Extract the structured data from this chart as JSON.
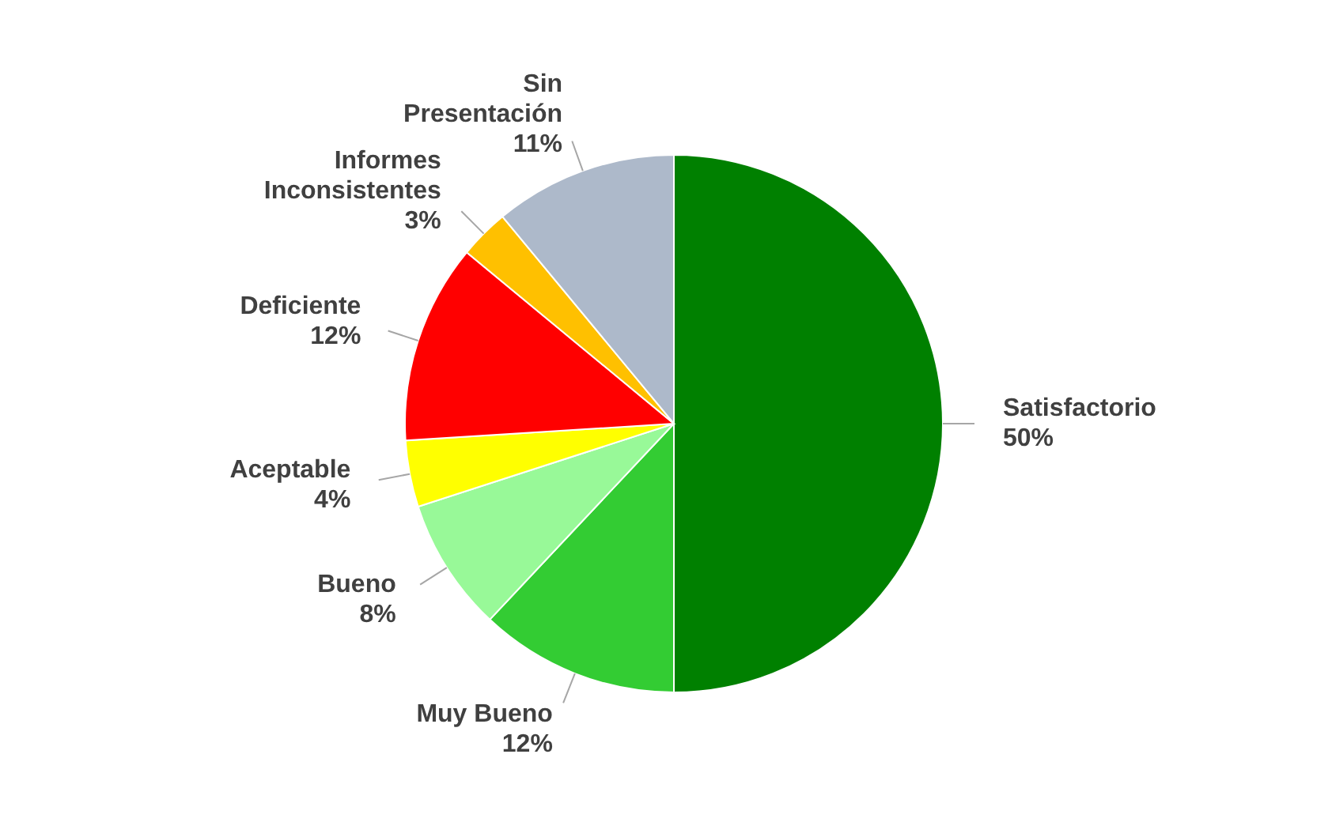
{
  "chart_data": {
    "type": "pie",
    "categories": [
      "Satisfactorio",
      "Muy Bueno",
      "Bueno",
      "Aceptable",
      "Deficiente",
      "Informes Inconsistentes",
      "Sin Presentación"
    ],
    "values": [
      50,
      12,
      8,
      4,
      12,
      3,
      11
    ],
    "value_labels": [
      "50%",
      "12%",
      "8%",
      "4%",
      "12%",
      "3%",
      "11%"
    ],
    "colors": [
      "#008000",
      "#33cc33",
      "#98f998",
      "#ffff00",
      "#ff0000",
      "#ffc000",
      "#adb9ca"
    ],
    "legend": false
  }
}
